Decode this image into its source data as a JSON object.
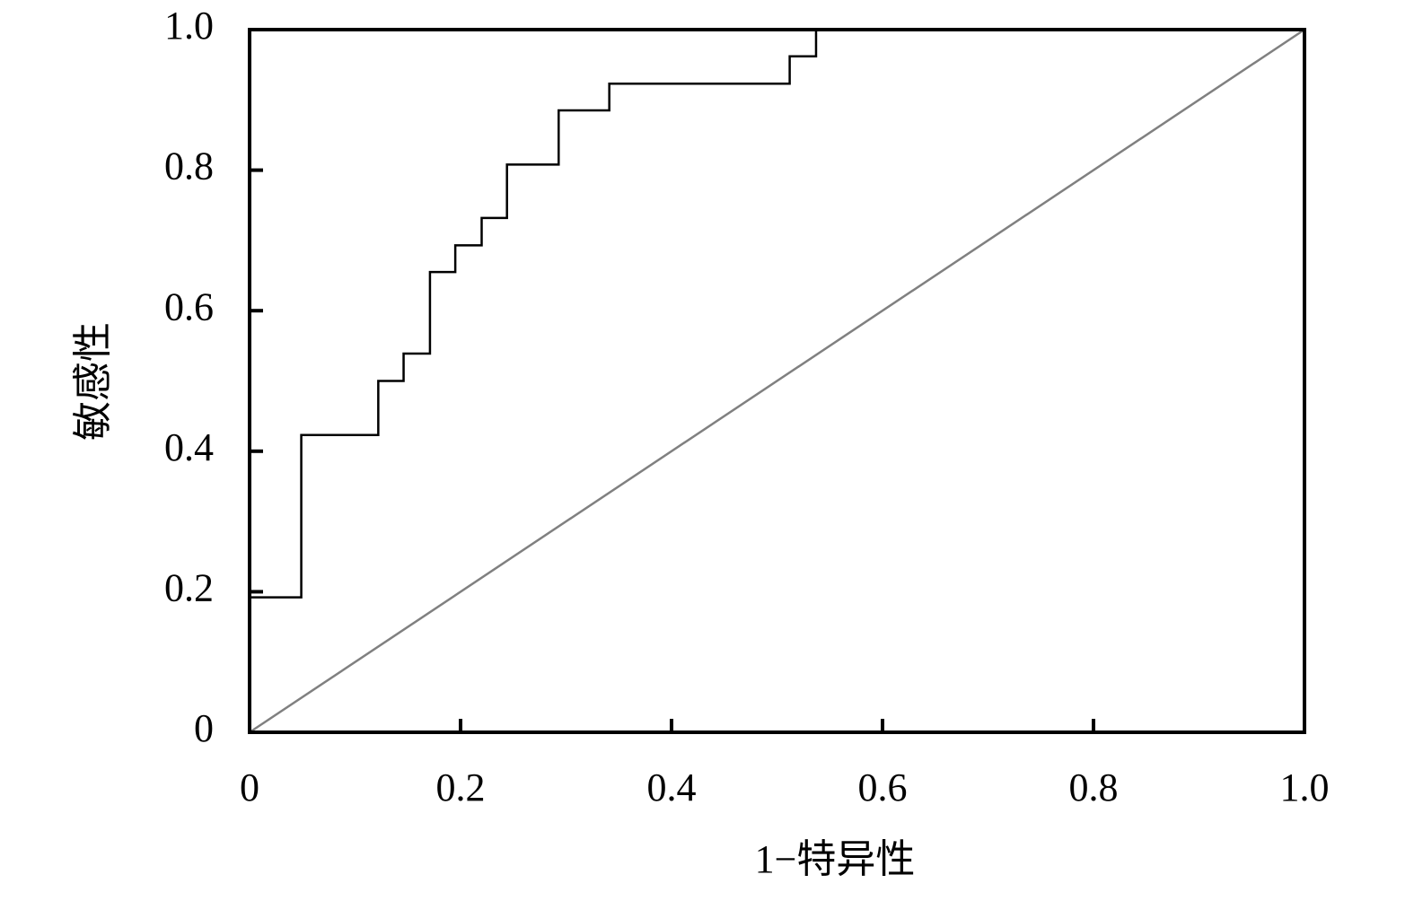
{
  "chart_data": {
    "type": "line",
    "xlabel": "1−特异性",
    "ylabel": "敏感性",
    "xlim": [
      0,
      1
    ],
    "ylim": [
      0,
      1
    ],
    "xticks": [
      0,
      0.2,
      0.4,
      0.6,
      0.8,
      {
        "value": 1,
        "label": "1.0"
      }
    ],
    "yticks": [
      0,
      0.2,
      0.4,
      0.6,
      0.8,
      {
        "value": 1,
        "label": "1.0"
      }
    ],
    "series": [
      {
        "color": "#000000",
        "x": [
          0,
          0.049,
          0.049,
          0.122,
          0.122,
          0.146,
          0.146,
          0.171,
          0.171,
          0.195,
          0.195,
          0.22,
          0.22,
          0.244,
          0.244,
          0.293,
          0.293,
          0.341,
          0.341,
          0.512,
          0.512,
          0.537,
          0.537,
          1
        ],
        "values": [
          0.192,
          0.192,
          0.423,
          0.423,
          0.5,
          0.5,
          0.539,
          0.539,
          0.655,
          0.655,
          0.693,
          0.693,
          0.732,
          0.732,
          0.808,
          0.808,
          0.885,
          0.885,
          0.923,
          0.923,
          0.962,
          0.962,
          1,
          1
        ]
      },
      {
        "color": "#808080",
        "x": [
          0,
          1
        ],
        "values": [
          0,
          1
        ]
      }
    ]
  }
}
